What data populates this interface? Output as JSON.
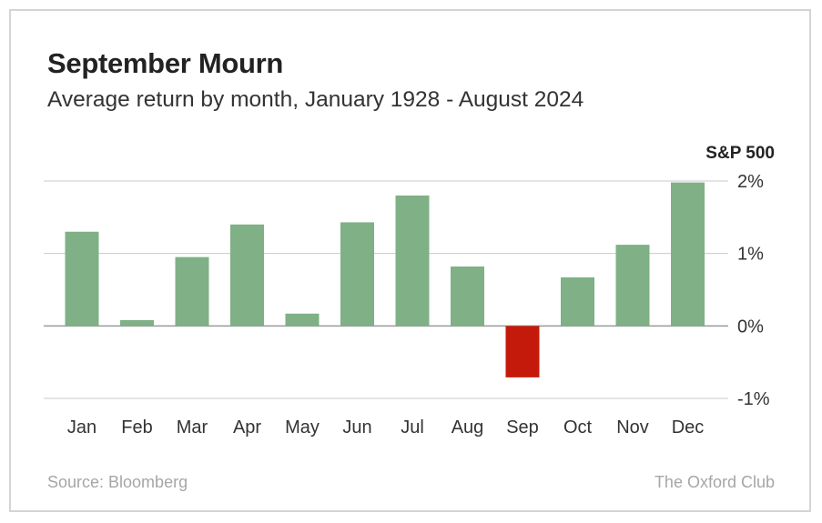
{
  "chart_data": {
    "type": "bar",
    "title": "September Mourn",
    "subtitle": "Average return by month, January 1928 - August 2024",
    "series_label": "S&P 500",
    "categories": [
      "Jan",
      "Feb",
      "Mar",
      "Apr",
      "May",
      "Jun",
      "Jul",
      "Aug",
      "Sep",
      "Oct",
      "Nov",
      "Dec"
    ],
    "values": [
      1.3,
      0.08,
      0.95,
      1.4,
      0.17,
      1.43,
      1.8,
      0.82,
      -0.71,
      0.67,
      1.12,
      1.98
    ],
    "ylim": [
      -1,
      2
    ],
    "yticks": [
      {
        "value": 2,
        "label": "2%"
      },
      {
        "value": 1,
        "label": "1%"
      },
      {
        "value": 0,
        "label": "0%"
      },
      {
        "value": -1,
        "label": "-1%"
      }
    ],
    "colors": {
      "positive": "#7fb086",
      "negative": "#c41a0c"
    },
    "axis_position": "right",
    "grid": true
  },
  "footer": {
    "source": "Source: Bloomberg",
    "brand": "The Oxford Club"
  }
}
